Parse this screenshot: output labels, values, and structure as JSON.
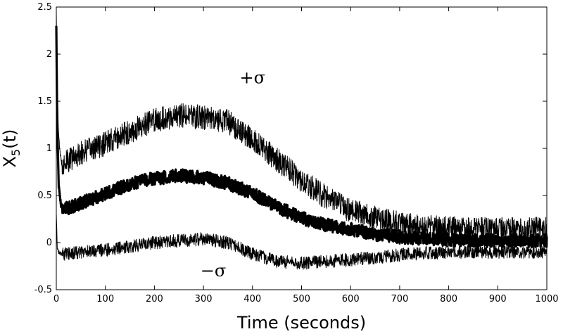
{
  "chart_data": {
    "type": "line",
    "title": "",
    "xlabel": "Time (seconds)",
    "ylabel_base": "X",
    "ylabel_sub": "5",
    "ylabel_tail": "(t)",
    "xlim": [
      0,
      1000
    ],
    "ylim": [
      -0.5,
      2.5
    ],
    "xticks": [
      0,
      100,
      200,
      300,
      400,
      500,
      600,
      700,
      800,
      900,
      1000
    ],
    "yticks": [
      -0.5,
      0,
      0.5,
      1,
      1.5,
      2,
      2.5
    ],
    "xtick_labels": [
      "0",
      "100",
      "200",
      "300",
      "400",
      "500",
      "600",
      "700",
      "800",
      "900",
      "1000"
    ],
    "ytick_labels": [
      "-0.5",
      "0",
      "0.5",
      "1",
      "1.5",
      "2",
      "2.5"
    ],
    "grid": false,
    "legend": "none",
    "annotations": [
      {
        "text": "+σ",
        "x": 400,
        "y": 1.75
      },
      {
        "text": "−σ",
        "x": 320,
        "y": -0.3
      }
    ],
    "series": [
      {
        "role": "upper",
        "color": "#000000",
        "noise_amplitude": 0.13,
        "x": [
          0,
          2,
          5,
          10,
          20,
          50,
          100,
          150,
          200,
          250,
          300,
          350,
          400,
          450,
          500,
          550,
          600,
          650,
          700,
          750,
          800,
          850,
          900,
          950,
          1000
        ],
        "values": [
          2.45,
          1.6,
          1.1,
          0.85,
          0.85,
          0.95,
          1.05,
          1.18,
          1.3,
          1.35,
          1.33,
          1.28,
          1.1,
          0.88,
          0.66,
          0.48,
          0.34,
          0.26,
          0.2,
          0.17,
          0.15,
          0.14,
          0.14,
          0.14,
          0.14
        ]
      },
      {
        "role": "mean",
        "color": "#000000",
        "noise_amplitude": 0.07,
        "x": [
          0,
          2,
          5,
          10,
          20,
          50,
          100,
          150,
          200,
          250,
          300,
          350,
          400,
          450,
          500,
          550,
          600,
          650,
          700,
          750,
          800,
          850,
          900,
          950,
          1000
        ],
        "values": [
          2.3,
          1.2,
          0.6,
          0.38,
          0.36,
          0.42,
          0.52,
          0.62,
          0.68,
          0.71,
          0.69,
          0.63,
          0.52,
          0.38,
          0.26,
          0.19,
          0.14,
          0.09,
          0.06,
          0.04,
          0.03,
          0.025,
          0.02,
          0.02,
          0.02
        ]
      },
      {
        "role": "lower",
        "color": "#000000",
        "noise_amplitude": 0.07,
        "x": [
          0,
          2,
          5,
          10,
          20,
          50,
          100,
          150,
          200,
          250,
          300,
          350,
          400,
          450,
          500,
          550,
          600,
          650,
          700,
          750,
          800,
          850,
          900,
          950,
          1000
        ],
        "values": [
          0.3,
          -0.05,
          -0.1,
          -0.12,
          -0.12,
          -0.1,
          -0.08,
          -0.04,
          0.0,
          0.02,
          0.04,
          0.0,
          -0.12,
          -0.2,
          -0.22,
          -0.2,
          -0.18,
          -0.16,
          -0.13,
          -0.11,
          -0.1,
          -0.1,
          -0.1,
          -0.1,
          -0.1
        ]
      }
    ]
  }
}
